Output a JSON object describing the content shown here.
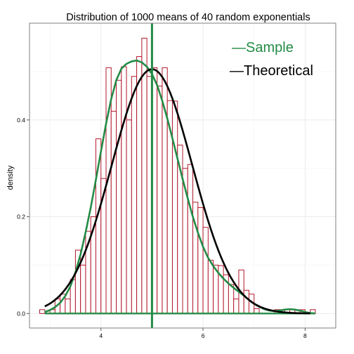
{
  "chart_data": {
    "type": "histogram",
    "title": "Distribution of 1000 means of 40 random exponentials",
    "xlabel": "",
    "ylabel": "density",
    "xlim": [
      2.6,
      8.6
    ],
    "ylim": [
      -0.03,
      0.6
    ],
    "x_ticks": [
      4,
      6,
      8
    ],
    "x_tick_labels": [
      "4",
      "6",
      "8"
    ],
    "y_ticks": [
      0.0,
      0.2,
      0.4
    ],
    "y_tick_labels": [
      "0.0",
      "0.2",
      "0.4"
    ],
    "grid": true,
    "bin_width": 0.1,
    "bins": [
      {
        "x": 2.85,
        "y": 0.008
      },
      {
        "x": 2.95,
        "y": 0.0
      },
      {
        "x": 3.05,
        "y": 0.008
      },
      {
        "x": 3.15,
        "y": 0.03
      },
      {
        "x": 3.25,
        "y": 0.04
      },
      {
        "x": 3.35,
        "y": 0.03
      },
      {
        "x": 3.45,
        "y": 0.07
      },
      {
        "x": 3.55,
        "y": 0.131
      },
      {
        "x": 3.65,
        "y": 0.1
      },
      {
        "x": 3.75,
        "y": 0.17
      },
      {
        "x": 3.85,
        "y": 0.2
      },
      {
        "x": 3.95,
        "y": 0.361
      },
      {
        "x": 4.05,
        "y": 0.279
      },
      {
        "x": 4.15,
        "y": 0.508
      },
      {
        "x": 4.25,
        "y": 0.418
      },
      {
        "x": 4.35,
        "y": 0.482
      },
      {
        "x": 4.45,
        "y": 0.51
      },
      {
        "x": 4.55,
        "y": 0.4
      },
      {
        "x": 4.65,
        "y": 0.49
      },
      {
        "x": 4.75,
        "y": 0.531
      },
      {
        "x": 4.85,
        "y": 0.569
      },
      {
        "x": 4.95,
        "y": 0.49
      },
      {
        "x": 5.05,
        "y": 0.508
      },
      {
        "x": 5.15,
        "y": 0.47
      },
      {
        "x": 5.25,
        "y": 0.508
      },
      {
        "x": 5.35,
        "y": 0.44
      },
      {
        "x": 5.45,
        "y": 0.439
      },
      {
        "x": 5.55,
        "y": 0.348
      },
      {
        "x": 5.65,
        "y": 0.3
      },
      {
        "x": 5.75,
        "y": 0.308
      },
      {
        "x": 5.85,
        "y": 0.23
      },
      {
        "x": 5.95,
        "y": 0.219
      },
      {
        "x": 6.05,
        "y": 0.178
      },
      {
        "x": 6.15,
        "y": 0.11
      },
      {
        "x": 6.25,
        "y": 0.1
      },
      {
        "x": 6.35,
        "y": 0.099
      },
      {
        "x": 6.45,
        "y": 0.08
      },
      {
        "x": 6.55,
        "y": 0.06
      },
      {
        "x": 6.65,
        "y": 0.03
      },
      {
        "x": 6.75,
        "y": 0.09
      },
      {
        "x": 6.85,
        "y": 0.048
      },
      {
        "x": 6.95,
        "y": 0.04
      },
      {
        "x": 7.05,
        "y": 0.01
      },
      {
        "x": 7.15,
        "y": 0.0
      },
      {
        "x": 7.25,
        "y": 0.0
      },
      {
        "x": 7.35,
        "y": 0.0
      },
      {
        "x": 7.45,
        "y": 0.008
      },
      {
        "x": 7.55,
        "y": 0.008
      },
      {
        "x": 7.65,
        "y": 0.008
      },
      {
        "x": 7.75,
        "y": 0.008
      },
      {
        "x": 7.85,
        "y": 0.0
      },
      {
        "x": 7.95,
        "y": 0.008
      },
      {
        "x": 8.05,
        "y": 0.0
      },
      {
        "x": 8.15,
        "y": 0.008
      }
    ],
    "series": [
      {
        "name": "Sample",
        "x": [
          2.9,
          3.0,
          3.1,
          3.2,
          3.3,
          3.4,
          3.5,
          3.6,
          3.7,
          3.8,
          3.9,
          4.0,
          4.1,
          4.2,
          4.3,
          4.4,
          4.5,
          4.6,
          4.7,
          4.8,
          4.9,
          5.0,
          5.1,
          5.2,
          5.3,
          5.4,
          5.5,
          5.6,
          5.7,
          5.8,
          5.9,
          6.0,
          6.1,
          6.2,
          6.3,
          6.4,
          6.5,
          6.6,
          6.7,
          6.8,
          6.9,
          7.0,
          7.1,
          7.2,
          7.3,
          7.4,
          7.5,
          7.6,
          7.7,
          7.8,
          7.9,
          8.0,
          8.1,
          8.2
        ],
        "values": [
          0.003,
          0.007,
          0.013,
          0.022,
          0.036,
          0.056,
          0.085,
          0.122,
          0.168,
          0.219,
          0.276,
          0.335,
          0.392,
          0.443,
          0.482,
          0.506,
          0.516,
          0.521,
          0.523,
          0.519,
          0.51,
          0.495,
          0.472,
          0.44,
          0.403,
          0.362,
          0.32,
          0.278,
          0.238,
          0.2,
          0.167,
          0.138,
          0.115,
          0.098,
          0.084,
          0.072,
          0.062,
          0.053,
          0.045,
          0.037,
          0.028,
          0.02,
          0.014,
          0.009,
          0.006,
          0.005,
          0.006,
          0.008,
          0.009,
          0.008,
          0.006,
          0.003,
          0.001,
          0.0
        ],
        "color": "#238b45"
      },
      {
        "name": "Theoretical",
        "distribution": "normal",
        "mean": 5.0,
        "sd": 0.79,
        "x_range": [
          2.9,
          8.1
        ],
        "color": "#000000"
      }
    ],
    "vline": {
      "x": 5.0,
      "color": "#238b45"
    },
    "legend": {
      "placement": "top-right",
      "entries": [
        "—Sample",
        "—Theoretical"
      ]
    },
    "colors": {
      "bar_outline": "#b2182b",
      "sample": "#238b45",
      "theoretical": "#000000",
      "grid": "#ebebeb",
      "panel_border": "#7f7f7f"
    }
  }
}
